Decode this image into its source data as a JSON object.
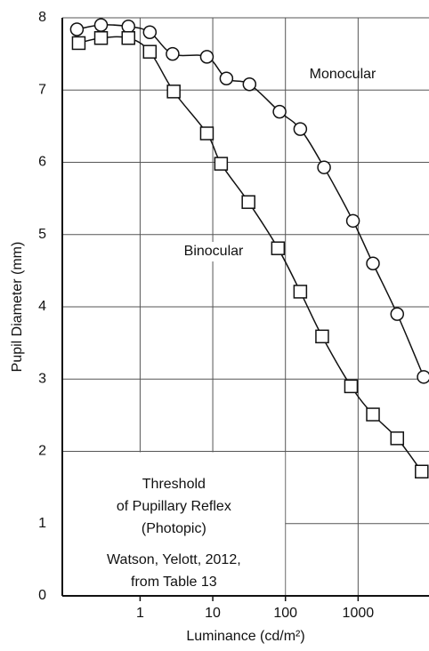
{
  "chart_data": {
    "type": "line",
    "x_label": "Luminance (cd/m²)",
    "y_label": "Pupil Diameter (mm)",
    "xscale": "log",
    "xlim": [
      0.085,
      10000
    ],
    "xticks": [
      1,
      10,
      100,
      1000
    ],
    "ylim": [
      0,
      8
    ],
    "yticks": [
      0,
      1,
      2,
      3,
      4,
      5,
      6,
      7,
      8
    ],
    "grid": true,
    "series": [
      {
        "name": "Monocular",
        "color": "#111111",
        "marker": "circle",
        "x": [
          0.135,
          0.29,
          0.69,
          1.36,
          2.8,
          8.3,
          15.4,
          32,
          83,
          160,
          340,
          850,
          1600,
          3450,
          8000
        ],
        "values": [
          7.84,
          7.9,
          7.88,
          7.8,
          7.5,
          7.46,
          7.16,
          7.08,
          6.7,
          6.46,
          5.93,
          5.19,
          4.6,
          3.9,
          3.03
        ]
      },
      {
        "name": "Binocular",
        "color": "#111111",
        "marker": "square",
        "x": [
          0.143,
          0.29,
          0.69,
          1.36,
          2.9,
          8.3,
          13,
          31,
          79,
          160,
          320,
          800,
          1600,
          3450,
          7500
        ],
        "values": [
          7.65,
          7.72,
          7.72,
          7.53,
          6.98,
          6.4,
          5.98,
          5.45,
          4.81,
          4.21,
          3.59,
          2.9,
          2.51,
          2.18,
          1.72
        ]
      }
    ],
    "annotations": [
      "Threshold",
      "of Pupillary Reflex",
      "(Photopic)",
      "Watson, Yelott, 2012,",
      "from Table 13"
    ]
  }
}
